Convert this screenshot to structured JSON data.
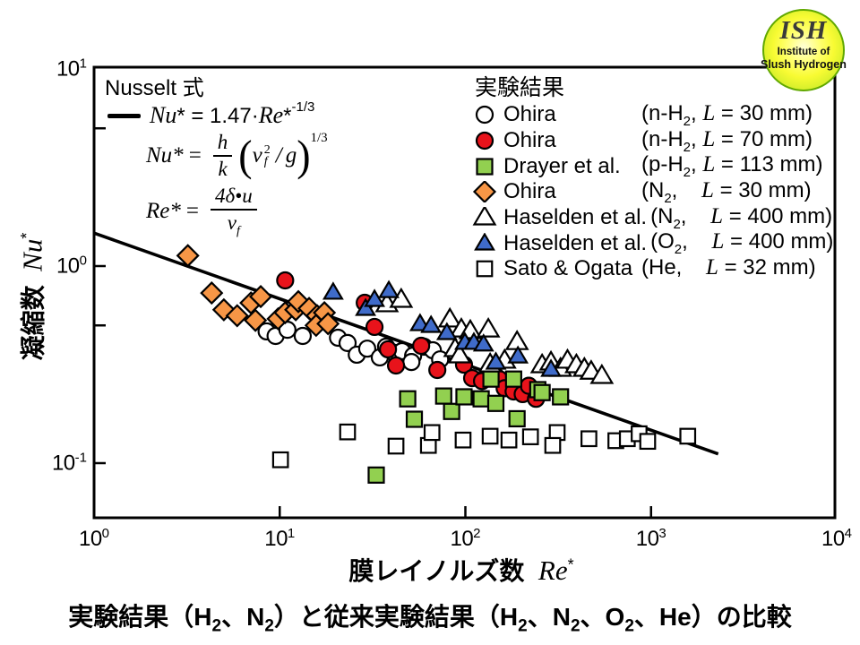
{
  "logo": {
    "abbr": "ISH",
    "line1": "Institute of",
    "line2": "Slush Hydrogen"
  },
  "nusselt": {
    "title": "Nusselt 式",
    "formula": {
      "v1": "Nu",
      "m1": "* = 1.47·",
      "v2": "Re",
      "m2": "*",
      "exp": "-1/3"
    }
  },
  "eq_nu": {
    "lhs": "Nu*",
    "rel": "=",
    "num": "h",
    "den": "k",
    "open": "(",
    "arg": "ν",
    "arg_sup": "2",
    "arg_sub": "f",
    "slash": "/",
    "arg2": "g",
    "close": ")",
    "exp": "1/3"
  },
  "eq_re": {
    "lhs": "Re*",
    "rel": "=",
    "num": "4δ•u",
    "den_v": "ν",
    "den_sub": "f"
  },
  "legend": {
    "title": "実験結果",
    "items": [
      {
        "name": "Ohira",
        "p1": "(n-H",
        "sub": "2",
        "p2": ", ",
        "L": "L",
        "p3": " = 30 mm)"
      },
      {
        "name": "Ohira",
        "p1": "(n-H",
        "sub": "2",
        "p2": ", ",
        "L": "L",
        "p3": " = 70 mm)"
      },
      {
        "name": "Drayer et al.",
        "p1": "(p-H",
        "sub": "2",
        "p2": ", ",
        "L": "L",
        "p3": " = 113 mm)"
      },
      {
        "name": "Ohira",
        "p1": "(N",
        "sub": "2",
        "p2": ",    ",
        "L": "L",
        "p3": " = 30 mm)"
      },
      {
        "name": "Haselden et al.",
        "p1": "(N",
        "sub": "2",
        "p2": ",    ",
        "L": "L",
        "p3": " = 400 mm)"
      },
      {
        "name": "Haselden et al.",
        "p1": "(O",
        "sub": "2",
        "p2": ",    ",
        "L": "L",
        "p3": " = 400 mm)"
      },
      {
        "name": "Sato & Ogata",
        "p1": "(He",
        "sub": "",
        "p2": ",    ",
        "L": "L",
        "p3": " = 32 mm)"
      }
    ]
  },
  "axes": {
    "x": {
      "jp": "膜レイノルズ数",
      "var": "Re",
      "sup": "*"
    },
    "y": {
      "jp": "凝縮数",
      "var": "Nu",
      "sup": "*"
    }
  },
  "caption": {
    "segments": [
      [
        "t",
        "実験結果（H"
      ],
      [
        "s",
        "2"
      ],
      [
        "t",
        "、N"
      ],
      [
        "s",
        "2"
      ],
      [
        "t",
        "）と従来実験結果（H"
      ],
      [
        "s",
        "2"
      ],
      [
        "t",
        "、N"
      ],
      [
        "s",
        "2"
      ],
      [
        "t",
        "、O"
      ],
      [
        "s",
        "2"
      ],
      [
        "t",
        "、He）の比較"
      ]
    ]
  },
  "chart_data": {
    "type": "scatter",
    "x_scale": "log",
    "y_scale": "log",
    "x_range": [
      1,
      10000
    ],
    "y_range": [
      0.05,
      10
    ],
    "xlabel": "膜レイノルズ数 Re*",
    "ylabel": "凝縮数 Nu*",
    "x_ticks_exp": [
      0,
      1,
      2,
      3,
      4
    ],
    "y_ticks_exp": [
      1,
      0,
      -1
    ],
    "y_minor_ticks": [
      5,
      0.5
    ],
    "fit_line": {
      "label": "Nu* = 1.47·Re*^-1/3",
      "coef": 1.47,
      "exponent": -0.3333,
      "x_start": 1,
      "x_end": 2300,
      "color": "#000000"
    },
    "series": [
      {
        "name": "Ohira",
        "detail": "(n-H2, L = 30 mm)",
        "marker": "circle",
        "fill": "#ffffff",
        "stroke": "#000000",
        "points": [
          [
            8.5,
            0.466
          ],
          [
            9.5,
            0.442
          ],
          [
            11.0,
            0.475
          ],
          [
            13.3,
            0.442
          ],
          [
            20.6,
            0.433
          ],
          [
            23.2,
            0.407
          ],
          [
            26.0,
            0.355
          ],
          [
            29.6,
            0.381
          ],
          [
            34.6,
            0.344
          ],
          [
            37.4,
            0.39
          ],
          [
            41.3,
            0.363
          ],
          [
            45.6,
            0.37
          ],
          [
            52.3,
            0.351
          ],
          [
            59.8,
            0.39
          ],
          [
            66.8,
            0.374
          ],
          [
            73.1,
            0.336
          ],
          [
            51.2,
            0.326
          ]
        ]
      },
      {
        "name": "Ohira",
        "detail": "(n-H2, L = 70 mm)",
        "marker": "circle",
        "fill": "#e8131b",
        "stroke": "#000000",
        "points": [
          [
            10.7,
            0.846
          ],
          [
            28.7,
            0.651
          ],
          [
            32.4,
            0.491
          ],
          [
            38.3,
            0.378
          ],
          [
            42.3,
            0.313
          ],
          [
            57.8,
            0.394
          ],
          [
            70.6,
            0.297
          ],
          [
            98.3,
            0.316
          ],
          [
            108.7,
            0.27
          ],
          [
            122.9,
            0.261
          ],
          [
            145.9,
            0.276
          ],
          [
            152.4,
            0.267
          ],
          [
            162.7,
            0.24
          ],
          [
            181.9,
            0.231
          ],
          [
            203.5,
            0.224
          ],
          [
            219.6,
            0.247
          ],
          [
            240.1,
            0.212
          ]
        ]
      },
      {
        "name": "Drayer et al.",
        "detail": "(p-H2, L = 113 mm)",
        "marker": "square",
        "fill": "#92d050",
        "stroke": "#000000",
        "points": [
          [
            33.1,
            0.087
          ],
          [
            48.9,
            0.212
          ],
          [
            53.1,
            0.167
          ],
          [
            76.4,
            0.219
          ],
          [
            84.3,
            0.183
          ],
          [
            98.3,
            0.217
          ],
          [
            121.6,
            0.212
          ],
          [
            145.9,
            0.201
          ],
          [
            189.8,
            0.168
          ],
          [
            137.4,
            0.267
          ],
          [
            181.9,
            0.267
          ],
          [
            245.5,
            0.236
          ],
          [
            258.9,
            0.228
          ],
          [
            325.4,
            0.217
          ]
        ]
      },
      {
        "name": "Ohira",
        "detail": "(N2, L = 30 mm)",
        "marker": "diamond",
        "fill": "#f79646",
        "stroke": "#000000",
        "points": [
          [
            3.2,
            1.13
          ],
          [
            4.3,
            0.73
          ],
          [
            5.0,
            0.6
          ],
          [
            5.9,
            0.56
          ],
          [
            7.0,
            0.65
          ],
          [
            7.9,
            0.7
          ],
          [
            7.4,
            0.53
          ],
          [
            9.8,
            0.54
          ],
          [
            10.7,
            0.58
          ],
          [
            12.2,
            0.6
          ],
          [
            12.6,
            0.66
          ],
          [
            14.4,
            0.61
          ],
          [
            15.9,
            0.56
          ],
          [
            17.4,
            0.58
          ],
          [
            15.7,
            0.5
          ],
          [
            18.2,
            0.51
          ]
        ]
      },
      {
        "name": "Haselden et al.",
        "detail": "(N2, L = 400 mm)",
        "marker": "triangle",
        "fill": "#ffffff",
        "stroke": "#000000",
        "points": [
          [
            37.8,
            0.638
          ],
          [
            45.1,
            0.672
          ],
          [
            82.5,
            0.534
          ],
          [
            95.1,
            0.475
          ],
          [
            106.3,
            0.466
          ],
          [
            132.9,
            0.475
          ],
          [
            88.0,
            0.378
          ],
          [
            93.0,
            0.351
          ],
          [
            135.9,
            0.316
          ],
          [
            162.7,
            0.33
          ],
          [
            189.8,
            0.41
          ],
          [
            258.9,
            0.313
          ],
          [
            289.1,
            0.323
          ],
          [
            325.4,
            0.3
          ],
          [
            354.8,
            0.33
          ],
          [
            396.1,
            0.313
          ],
          [
            437.4,
            0.3
          ],
          [
            475.9,
            0.29
          ],
          [
            543.3,
            0.276
          ]
        ]
      },
      {
        "name": "Haselden et al.",
        "detail": "(O2, L = 400 mm)",
        "marker": "triangle-small",
        "fill": "#3f6bc9",
        "stroke": "#000000",
        "points": [
          [
            19.4,
            0.731
          ],
          [
            29.0,
            0.605
          ],
          [
            32.4,
            0.672
          ],
          [
            38.7,
            0.745
          ],
          [
            57.0,
            0.506
          ],
          [
            65.3,
            0.496
          ],
          [
            79.5,
            0.456
          ],
          [
            99.4,
            0.407
          ],
          [
            111.1,
            0.407
          ],
          [
            125.3,
            0.399
          ],
          [
            145.9,
            0.323
          ],
          [
            191.9,
            0.347
          ],
          [
            289.1,
            0.297
          ]
        ]
      },
      {
        "name": "Sato & Ogata",
        "detail": "(He, L = 32 mm)",
        "marker": "square-open",
        "fill": "#ffffff",
        "stroke": "#000000",
        "points": [
          [
            10.1,
            0.104
          ],
          [
            23.2,
            0.144
          ],
          [
            42.3,
            0.122
          ],
          [
            63.2,
            0.123
          ],
          [
            66.1,
            0.143
          ],
          [
            97.2,
            0.131
          ],
          [
            135.9,
            0.137
          ],
          [
            171.6,
            0.131
          ],
          [
            224.2,
            0.136
          ],
          [
            312.2,
            0.143
          ],
          [
            295.5,
            0.123
          ],
          [
            462.7,
            0.133
          ],
          [
            646.2,
            0.13
          ],
          [
            745.2,
            0.133
          ],
          [
            862.3,
            0.141
          ],
          [
            959.4,
            0.129
          ],
          [
            1577,
            0.137
          ]
        ]
      }
    ]
  }
}
